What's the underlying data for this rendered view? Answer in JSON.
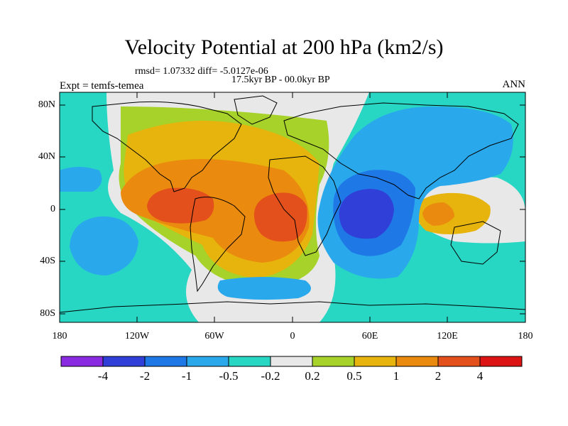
{
  "title": "Velocity Potential at 200 hPa (km2/s)",
  "stats": "rmsd= 1.07332 diff= -5.0127e-06",
  "period": "17.5kyr BP - 00.0kyr BP",
  "experiment": "Expt = temfs-temea",
  "season": "ANN",
  "lat_labels": [
    "80N",
    "40N",
    "0",
    "40S",
    "80S"
  ],
  "lon_labels": [
    "180",
    "120W",
    "60W",
    "0",
    "60E",
    "120E",
    "180"
  ],
  "colorbar": {
    "labels": [
      "-4",
      "-2",
      "-1",
      "-0.5",
      "-0.2",
      "0.2",
      "0.5",
      "1",
      "2",
      "4"
    ],
    "colors": [
      "#8a2be2",
      "#2f3fd8",
      "#1e78e6",
      "#2aa8ec",
      "#28d6c4",
      "#e8e8e8",
      "#a6d22a",
      "#e6b40c",
      "#ea8a0e",
      "#e4501c",
      "#dc1414"
    ]
  },
  "map_colors": {
    "neutral": "#e8e8e8",
    "weak_negative": "#28d6c4",
    "negative_1": "#2aa8ec",
    "negative_2": "#1e78e6",
    "negative_3": "#2f3fd8",
    "weak_positive": "#a6d22a",
    "positive_1": "#e6b40c",
    "positive_2": "#ea8a0e",
    "positive_3": "#e4501c"
  }
}
